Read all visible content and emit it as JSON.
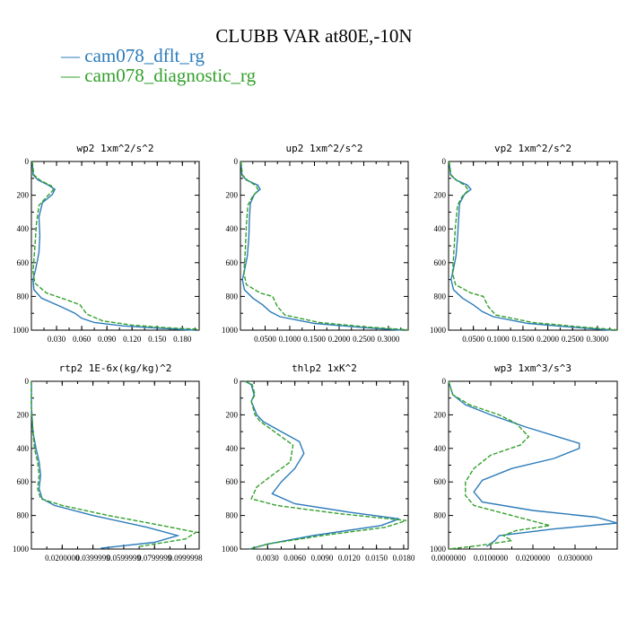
{
  "title": "CLUBB VAR at80E,-10N",
  "legend": [
    {
      "name": "cam078_dflt_rg",
      "color": "#2b7bba"
    },
    {
      "name": "cam078_diagnostic_rg",
      "color": "#33a02c"
    }
  ],
  "chart_data": [
    {
      "type": "line",
      "title": "wp2  1xm^2/s^2",
      "xlim": [
        0,
        0.2
      ],
      "ylim": [
        1000,
        0
      ],
      "y_inverted": true,
      "xticks": [
        0.03,
        0.06,
        0.09,
        0.12,
        0.15,
        0.18
      ],
      "xtick_labels": [
        "0.030",
        "0.060",
        "0.090",
        "0.120",
        "0.150",
        "0.180"
      ],
      "yticks": [
        0,
        200,
        400,
        600,
        800,
        1000
      ],
      "ytick_labels": [
        "0",
        "200",
        "400",
        "600",
        "800",
        "1000"
      ],
      "series": [
        {
          "name": "cam078_dflt_rg",
          "x": [
            0.001,
            0.002,
            0.008,
            0.02,
            0.028,
            0.025,
            0.013,
            0.009,
            0.01,
            0.009,
            0.005,
            0.002,
            0.003,
            0.012,
            0.035,
            0.052,
            0.06,
            0.075,
            0.11,
            0.15,
            0.195
          ],
          "y": [
            0,
            80,
            110,
            140,
            165,
            195,
            245,
            330,
            440,
            540,
            640,
            700,
            760,
            810,
            860,
            900,
            930,
            955,
            975,
            988,
            1000
          ]
        },
        {
          "name": "cam078_diagnostic_rg",
          "x": [
            0.001,
            0.003,
            0.01,
            0.024,
            0.026,
            0.02,
            0.009,
            0.006,
            0.004,
            0.002,
            0.004,
            0.018,
            0.042,
            0.058,
            0.066,
            0.085,
            0.12,
            0.16,
            0.2
          ],
          "y": [
            0,
            80,
            110,
            145,
            170,
            200,
            260,
            370,
            520,
            650,
            720,
            780,
            820,
            850,
            905,
            945,
            970,
            985,
            995
          ]
        }
      ]
    },
    {
      "type": "line",
      "title": "up2  1xm^2/s^2",
      "xlim": [
        0,
        0.34
      ],
      "ylim": [
        1000,
        0
      ],
      "y_inverted": true,
      "xticks": [
        0.05,
        0.1,
        0.15,
        0.2,
        0.25,
        0.3
      ],
      "xtick_labels": [
        "0.0500",
        "0.1000",
        "0.1500",
        "0.2000",
        "0.2500",
        "0.3000"
      ],
      "yticks": [
        0,
        200,
        400,
        600,
        800,
        1000
      ],
      "ytick_labels": [
        "0",
        "200",
        "400",
        "600",
        "800",
        "1000"
      ],
      "series": [
        {
          "name": "cam078_dflt_rg",
          "x": [
            0.001,
            0.003,
            0.012,
            0.035,
            0.04,
            0.028,
            0.02,
            0.018,
            0.017,
            0.014,
            0.008,
            0.004,
            0.008,
            0.025,
            0.045,
            0.06,
            0.08,
            0.15,
            0.25,
            0.33
          ],
          "y": [
            0,
            80,
            110,
            140,
            165,
            195,
            250,
            350,
            450,
            560,
            650,
            700,
            760,
            810,
            850,
            890,
            920,
            960,
            985,
            1000
          ]
        },
        {
          "name": "cam078_diagnostic_rg",
          "x": [
            0.001,
            0.004,
            0.014,
            0.032,
            0.036,
            0.025,
            0.015,
            0.012,
            0.01,
            0.007,
            0.012,
            0.04,
            0.065,
            0.075,
            0.09,
            0.16,
            0.26,
            0.34
          ],
          "y": [
            0,
            80,
            110,
            145,
            170,
            205,
            260,
            380,
            520,
            660,
            730,
            780,
            800,
            860,
            910,
            955,
            982,
            998
          ]
        }
      ]
    },
    {
      "type": "line",
      "title": "vp2  1xm^2/s^2",
      "xlim": [
        0,
        0.34
      ],
      "ylim": [
        1000,
        0
      ],
      "y_inverted": true,
      "xticks": [
        0.05,
        0.1,
        0.15,
        0.2,
        0.25,
        0.3
      ],
      "xtick_labels": [
        "0.0500",
        "0.1000",
        "0.1500",
        "0.2000",
        "0.2500",
        "0.3000"
      ],
      "yticks": [
        0,
        200,
        400,
        600,
        800,
        1000
      ],
      "ytick_labels": [
        "0",
        "200",
        "400",
        "600",
        "800",
        "1000"
      ],
      "series": [
        {
          "name": "cam078_dflt_rg",
          "x": [
            0.001,
            0.004,
            0.015,
            0.038,
            0.045,
            0.032,
            0.022,
            0.02,
            0.018,
            0.015,
            0.009,
            0.005,
            0.01,
            0.028,
            0.05,
            0.068,
            0.09,
            0.16,
            0.26,
            0.33
          ],
          "y": [
            0,
            80,
            110,
            140,
            165,
            195,
            250,
            350,
            450,
            560,
            650,
            700,
            760,
            810,
            850,
            890,
            920,
            960,
            985,
            1000
          ]
        },
        {
          "name": "cam078_diagnostic_rg",
          "x": [
            0.001,
            0.005,
            0.016,
            0.034,
            0.04,
            0.028,
            0.018,
            0.014,
            0.011,
            0.008,
            0.014,
            0.045,
            0.07,
            0.08,
            0.095,
            0.17,
            0.27,
            0.34
          ],
          "y": [
            0,
            80,
            110,
            145,
            170,
            205,
            260,
            380,
            520,
            660,
            730,
            780,
            800,
            860,
            910,
            955,
            982,
            998
          ]
        }
      ]
    },
    {
      "type": "line",
      "title": "rtp2  1E-6x(kg/kg)^2",
      "xlim": [
        0,
        0.109
      ],
      "ylim": [
        1000,
        0
      ],
      "y_inverted": true,
      "xticks": [
        0.02,
        0.04,
        0.06,
        0.08,
        0.1
      ],
      "xtick_labels": [
        "0.0200000",
        "0.0399999",
        "0.0599999",
        "0.0799999",
        "0.0999998"
      ],
      "yticks": [
        0,
        200,
        400,
        600,
        800,
        1000
      ],
      "ytick_labels": [
        "0",
        "200",
        "400",
        "600",
        "800",
        "1000"
      ],
      "series": [
        {
          "name": "cam078_dflt_rg",
          "x": [
            0.0,
            0.0,
            0.001,
            0.003,
            0.005,
            0.006,
            0.005,
            0.007,
            0.015,
            0.04,
            0.075,
            0.095,
            0.08,
            0.045
          ],
          "y": [
            0,
            150,
            300,
            400,
            480,
            560,
            640,
            700,
            740,
            800,
            870,
            920,
            960,
            995
          ]
        },
        {
          "name": "cam078_diagnostic_rg",
          "x": [
            0.0,
            0.0,
            0.001,
            0.002,
            0.004,
            0.005,
            0.004,
            0.006,
            0.02,
            0.05,
            0.085,
            0.107,
            0.1,
            0.07
          ],
          "y": [
            0,
            150,
            300,
            400,
            480,
            560,
            640,
            700,
            740,
            800,
            860,
            900,
            940,
            985
          ]
        }
      ]
    },
    {
      "type": "line",
      "title": "thlp2  1xK^2",
      "xlim": [
        0,
        0.0185
      ],
      "ylim": [
        1000,
        0
      ],
      "y_inverted": true,
      "xticks": [
        0.003,
        0.006,
        0.009,
        0.012,
        0.015,
        0.018
      ],
      "xtick_labels": [
        "0.0030",
        "0.0060",
        "0.0090",
        "0.0120",
        "0.0150",
        "0.0180"
      ],
      "yticks": [
        0,
        200,
        400,
        600,
        800,
        1000
      ],
      "ytick_labels": [
        "0",
        "200",
        "400",
        "600",
        "800",
        "1000"
      ],
      "series": [
        {
          "name": "cam078_dflt_rg",
          "x": [
            0.0005,
            0.0012,
            0.0015,
            0.0012,
            0.0015,
            0.0018,
            0.0025,
            0.0045,
            0.0065,
            0.007,
            0.006,
            0.0045,
            0.0035,
            0.006,
            0.012,
            0.0175,
            0.0155,
            0.008,
            0.003,
            0.001
          ],
          "y": [
            0,
            20,
            80,
            120,
            160,
            200,
            240,
            300,
            360,
            430,
            520,
            600,
            670,
            730,
            780,
            820,
            860,
            920,
            970,
            1000
          ]
        },
        {
          "name": "cam078_diagnostic_rg",
          "x": [
            0.0005,
            0.0013,
            0.0016,
            0.0012,
            0.0014,
            0.0016,
            0.0022,
            0.004,
            0.0058,
            0.0055,
            0.0035,
            0.0018,
            0.0012,
            0.004,
            0.011,
            0.0183,
            0.016,
            0.009,
            0.003,
            0.001
          ],
          "y": [
            0,
            20,
            80,
            120,
            160,
            200,
            240,
            310,
            380,
            480,
            560,
            630,
            700,
            740,
            790,
            830,
            870,
            920,
            970,
            1000
          ]
        }
      ]
    },
    {
      "type": "line",
      "title": "wp3  1xm^3/s^3",
      "xlim": [
        0,
        0.04
      ],
      "ylim": [
        1000,
        0
      ],
      "y_inverted": true,
      "xticks": [
        0,
        0.01,
        0.02,
        0.03
      ],
      "xtick_labels": [
        "0.0000000",
        "0.0100000",
        "0.0200000",
        "0.0300000"
      ],
      "yticks": [
        0,
        200,
        400,
        600,
        800,
        1000
      ],
      "ytick_labels": [
        "0",
        "200",
        "400",
        "600",
        "800",
        "1000"
      ],
      "series": [
        {
          "name": "cam078_dflt_rg",
          "x": [
            0.0,
            0.001,
            0.004,
            0.01,
            0.018,
            0.031,
            0.031,
            0.025,
            0.015,
            0.008,
            0.006,
            0.008,
            0.02,
            0.035,
            0.04,
            0.025,
            0.012,
            0.011,
            0.009
          ],
          "y": [
            0,
            80,
            140,
            200,
            270,
            370,
            400,
            460,
            520,
            590,
            660,
            720,
            770,
            810,
            845,
            880,
            920,
            950,
            985
          ]
        },
        {
          "name": "cam078_diagnostic_rg",
          "x": [
            0.0,
            0.001,
            0.005,
            0.012,
            0.016,
            0.019,
            0.017,
            0.01,
            0.006,
            0.004,
            0.004,
            0.006,
            0.015,
            0.024,
            0.016,
            0.013,
            0.015,
            0.007,
            0.0
          ],
          "y": [
            0,
            80,
            140,
            200,
            250,
            330,
            380,
            440,
            520,
            600,
            680,
            740,
            800,
            860,
            890,
            920,
            950,
            980,
            1000
          ]
        }
      ]
    }
  ]
}
